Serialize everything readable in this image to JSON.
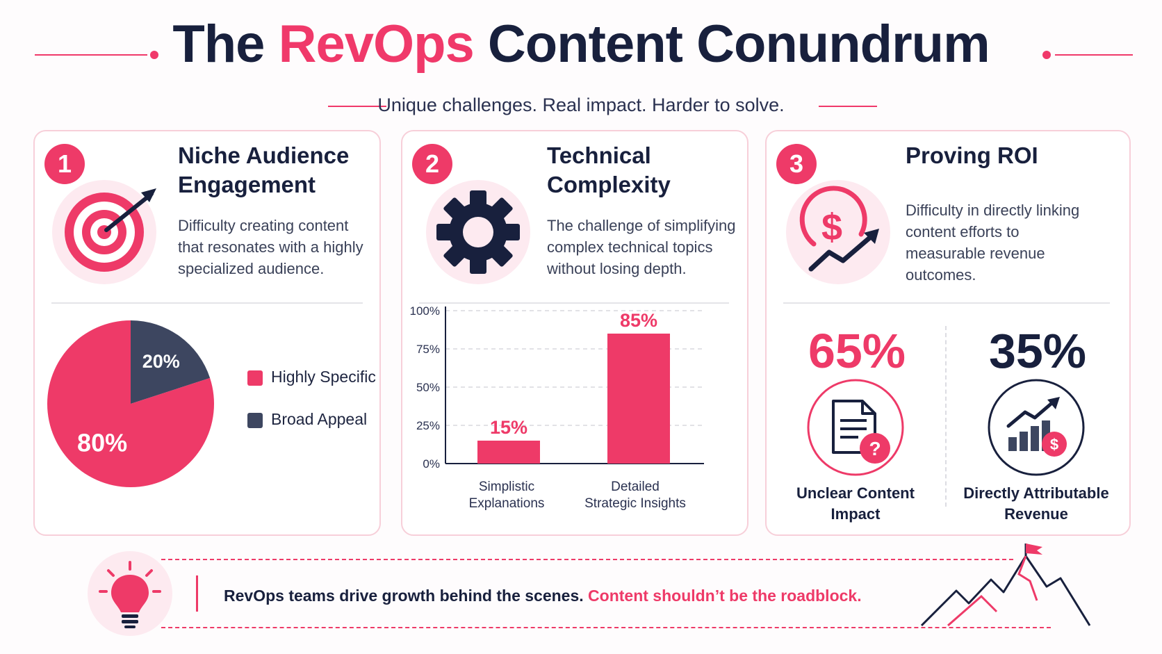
{
  "header": {
    "title_part1": "The ",
    "title_accent": "RevOps",
    "title_part2": " Content Conundrum",
    "subtitle": "Unique challenges. Real impact. Harder to solve."
  },
  "colors": {
    "accent": "#ee3a68",
    "navy": "#18203d",
    "slate": "#3d4660",
    "card_border": "#f7cfd9"
  },
  "cards": [
    {
      "number": "1",
      "title_line1": "Niche Audience",
      "title_line2": "Engagement",
      "desc_line1": "Difficulty creating content",
      "desc_line2": "that resonates with a highly",
      "desc_line3": "specialized audience.",
      "icon": "target-icon"
    },
    {
      "number": "2",
      "title_line1": "Technical",
      "title_line2": "Complexity",
      "desc_line1": "The challenge of simplifying",
      "desc_line2": "complex technical topics",
      "desc_line3": "without losing depth.",
      "icon": "gear-icon"
    },
    {
      "number": "3",
      "title_line1": "Proving ROI",
      "desc_line1": "Difficulty in directly linking",
      "desc_line2": "content efforts to",
      "desc_line3": "measurable revenue",
      "desc_line4": "outcomes.",
      "icon": "dollar-growth-icon"
    }
  ],
  "chart_data": [
    {
      "type": "pie",
      "labels": [
        "Highly Specific",
        "Broad Appeal"
      ],
      "values": [
        80,
        20
      ],
      "value_labels": [
        "80%",
        "20%"
      ],
      "colors": [
        "#ee3a68",
        "#3d4660"
      ],
      "legend": "right"
    },
    {
      "type": "bar",
      "categories": [
        "Simplistic Explanations",
        "Detailed Strategic Insights"
      ],
      "category_lines": [
        [
          "Simplistic",
          "Explanations"
        ],
        [
          "Detailed",
          "Strategic Insights"
        ]
      ],
      "values": [
        15,
        85
      ],
      "value_labels": [
        "15%",
        "85%"
      ],
      "ylim": [
        0,
        100
      ],
      "yticks": [
        "0%",
        "25%",
        "50%",
        "75%",
        "100%"
      ],
      "grid": true
    }
  ],
  "metrics": [
    {
      "value": "65%",
      "label_line1": "Unclear Content",
      "label_line2": "Impact",
      "icon": "document-question-icon"
    },
    {
      "value": "35%",
      "label_line1": "Directly Attributable",
      "label_line2": "Revenue",
      "icon": "growth-dollar-icon"
    }
  ],
  "footer": {
    "text_plain": "RevOps teams drive growth behind the scenes. ",
    "text_accent": "Content shouldn’t be the roadblock."
  }
}
